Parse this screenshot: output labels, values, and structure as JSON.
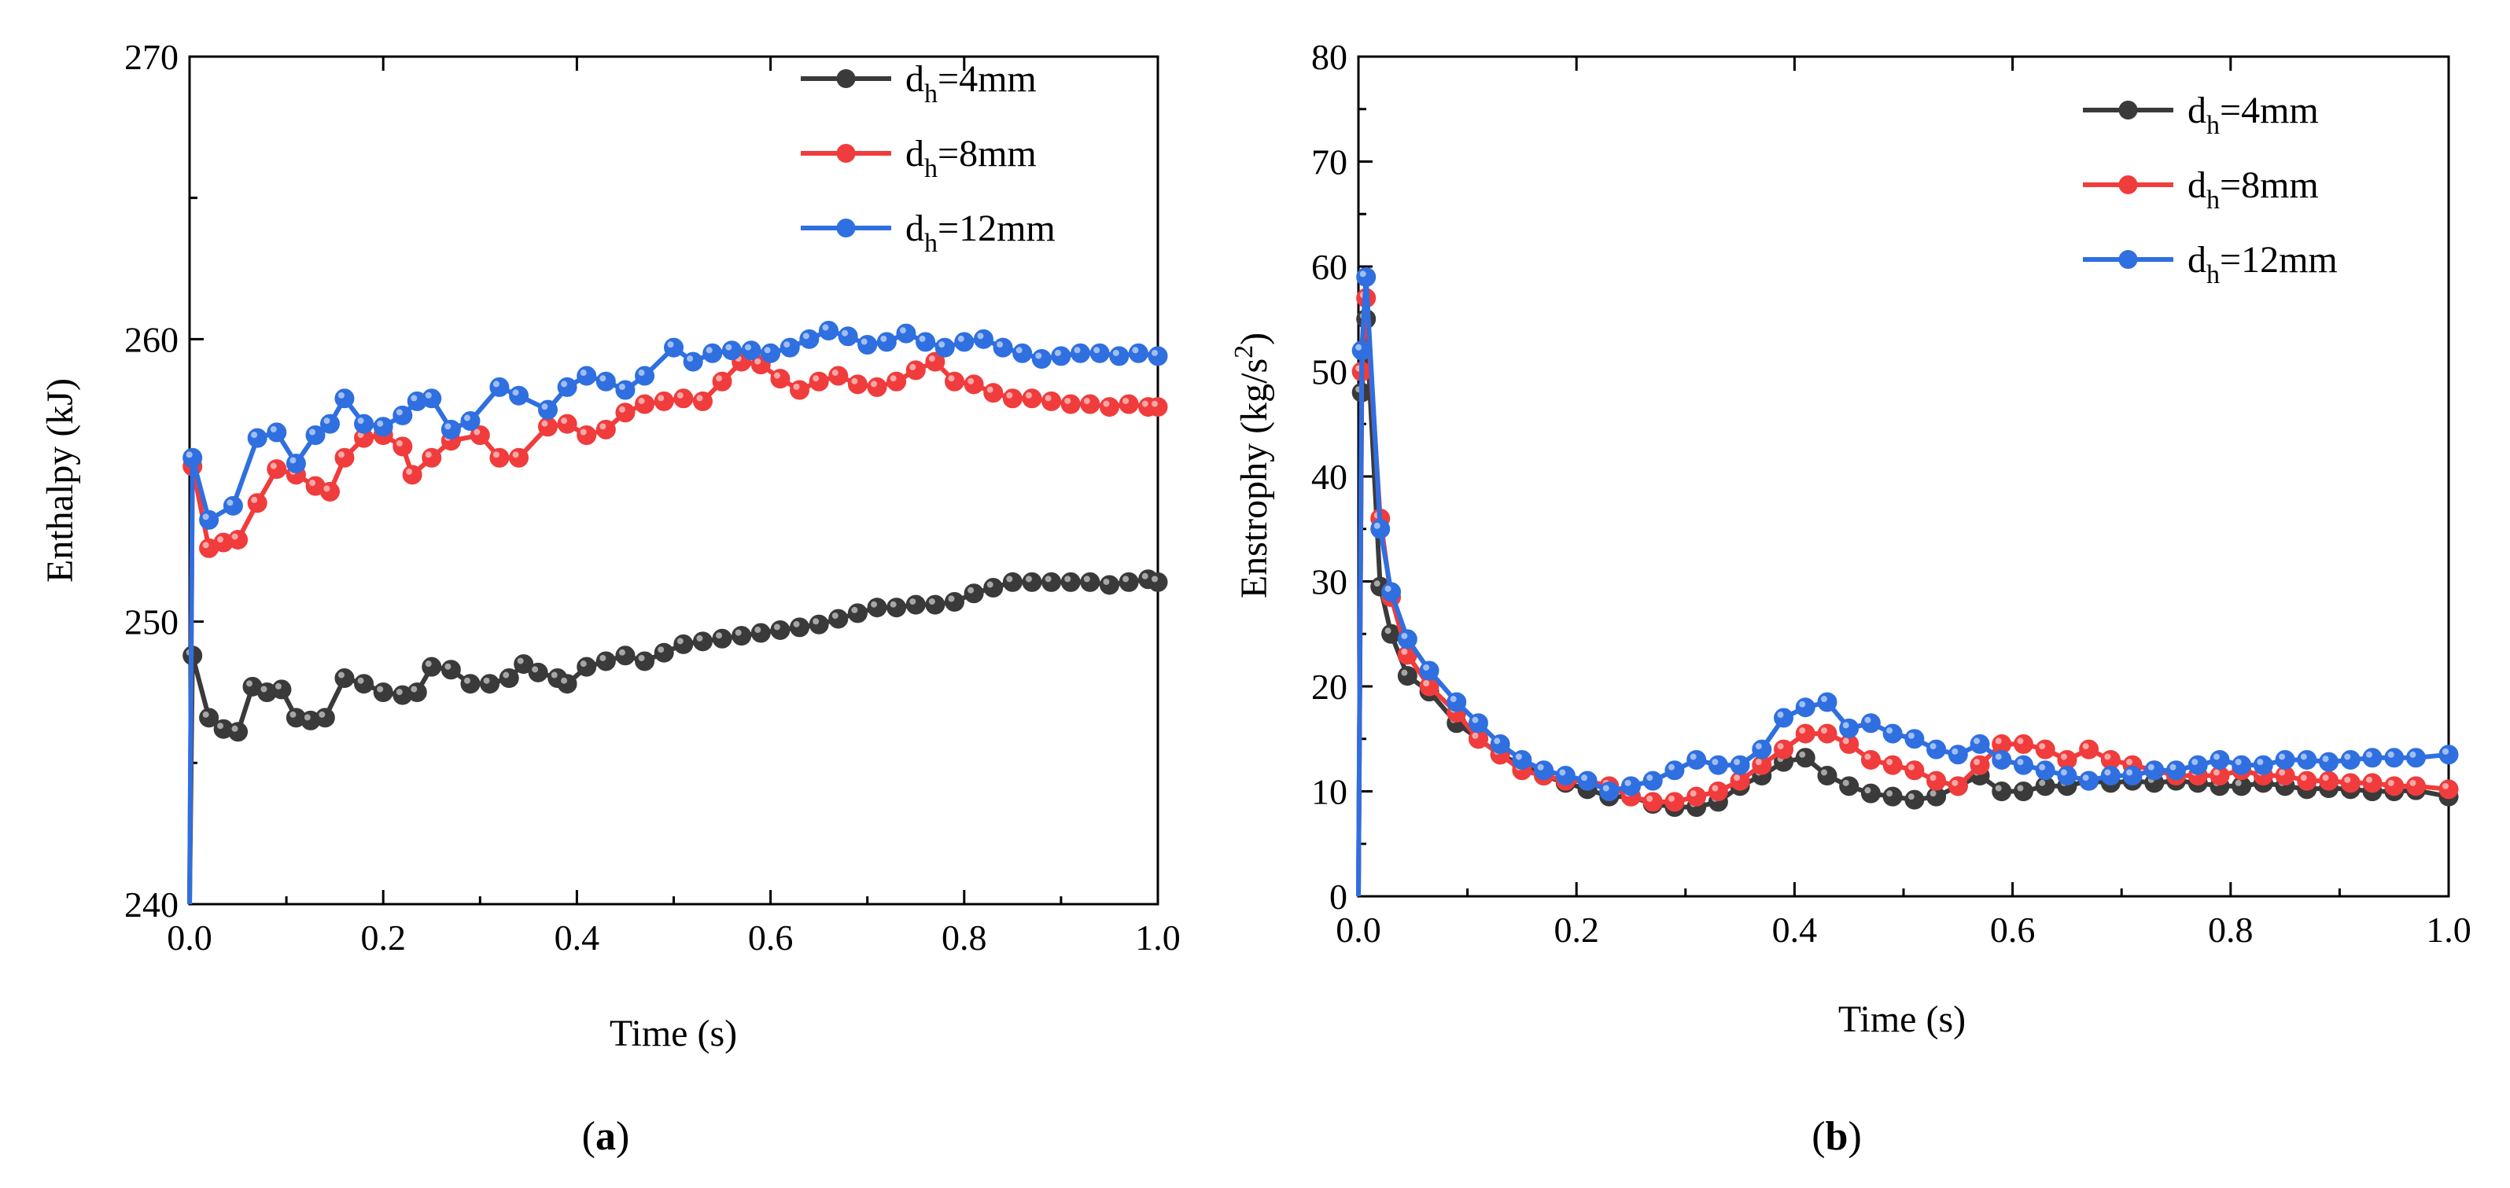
{
  "chart_data": [
    {
      "type": "line",
      "panel": "a",
      "xlabel": "Time (s)",
      "ylabel": "Enthalpy (kJ)",
      "xlim": [
        0,
        1.0
      ],
      "ylim": [
        240,
        270
      ],
      "xticks": [
        0.0,
        0.2,
        0.4,
        0.6,
        0.8,
        1.0
      ],
      "xtick_labels": [
        "0.0",
        "0.2",
        "0.4",
        "0.6",
        "0.8",
        "1.0"
      ],
      "yticks": [
        240,
        250,
        260,
        270
      ],
      "ytick_labels": [
        "240",
        "250",
        "260",
        "270"
      ],
      "legend_position": "top-right",
      "series": [
        {
          "name": "dh=4mm",
          "legend_main": "d",
          "legend_sub": "h",
          "legend_rest": "=4mm",
          "color": "#3a3a3a",
          "x": [
            0.0,
            0.003,
            0.02,
            0.035,
            0.05,
            0.065,
            0.08,
            0.095,
            0.11,
            0.125,
            0.14,
            0.16,
            0.18,
            0.2,
            0.22,
            0.235,
            0.25,
            0.27,
            0.29,
            0.31,
            0.33,
            0.345,
            0.36,
            0.38,
            0.39,
            0.41,
            0.43,
            0.45,
            0.47,
            0.49,
            0.51,
            0.53,
            0.55,
            0.57,
            0.59,
            0.61,
            0.63,
            0.65,
            0.67,
            0.69,
            0.71,
            0.73,
            0.75,
            0.77,
            0.79,
            0.81,
            0.83,
            0.85,
            0.87,
            0.89,
            0.91,
            0.93,
            0.95,
            0.97,
            0.99,
            1.0
          ],
          "y": [
            240.0,
            248.8,
            246.6,
            246.2,
            246.1,
            247.7,
            247.5,
            247.6,
            246.6,
            246.5,
            246.6,
            248.0,
            247.8,
            247.5,
            247.4,
            247.5,
            248.4,
            248.3,
            247.8,
            247.8,
            248.0,
            248.5,
            248.2,
            248.0,
            247.8,
            248.4,
            248.6,
            248.8,
            248.6,
            248.9,
            249.2,
            249.3,
            249.4,
            249.5,
            249.6,
            249.7,
            249.8,
            249.9,
            250.1,
            250.3,
            250.5,
            250.5,
            250.6,
            250.6,
            250.7,
            251.0,
            251.2,
            251.4,
            251.4,
            251.4,
            251.4,
            251.4,
            251.3,
            251.4,
            251.5,
            251.4
          ]
        },
        {
          "name": "dh=8mm",
          "legend_main": "d",
          "legend_sub": "h",
          "legend_rest": "=8mm",
          "color": "#f03c3c",
          "x": [
            0.0,
            0.003,
            0.02,
            0.035,
            0.05,
            0.07,
            0.09,
            0.11,
            0.13,
            0.145,
            0.16,
            0.18,
            0.2,
            0.22,
            0.23,
            0.25,
            0.27,
            0.3,
            0.32,
            0.34,
            0.37,
            0.39,
            0.41,
            0.43,
            0.45,
            0.47,
            0.49,
            0.51,
            0.53,
            0.55,
            0.57,
            0.59,
            0.61,
            0.63,
            0.65,
            0.67,
            0.69,
            0.71,
            0.73,
            0.75,
            0.77,
            0.79,
            0.81,
            0.83,
            0.85,
            0.87,
            0.89,
            0.91,
            0.93,
            0.95,
            0.97,
            0.99,
            1.0
          ],
          "y": [
            240.0,
            255.5,
            252.6,
            252.8,
            252.9,
            254.2,
            255.4,
            255.2,
            254.8,
            254.6,
            255.8,
            256.5,
            256.6,
            256.2,
            255.2,
            255.8,
            256.4,
            256.6,
            255.8,
            255.8,
            256.9,
            257.0,
            256.6,
            256.8,
            257.4,
            257.7,
            257.8,
            257.9,
            257.8,
            258.5,
            259.2,
            259.1,
            258.6,
            258.2,
            258.5,
            258.7,
            258.4,
            258.3,
            258.5,
            258.9,
            259.2,
            258.5,
            258.4,
            258.1,
            257.9,
            257.9,
            257.8,
            257.7,
            257.7,
            257.6,
            257.7,
            257.6,
            257.6
          ]
        },
        {
          "name": "dh=12mm",
          "legend_main": "d",
          "legend_sub": "h",
          "legend_rest": "=12mm",
          "color": "#2f6fe0",
          "x": [
            0.0,
            0.003,
            0.02,
            0.045,
            0.07,
            0.09,
            0.11,
            0.13,
            0.145,
            0.16,
            0.18,
            0.2,
            0.22,
            0.235,
            0.25,
            0.27,
            0.29,
            0.32,
            0.34,
            0.37,
            0.39,
            0.41,
            0.43,
            0.45,
            0.47,
            0.5,
            0.52,
            0.54,
            0.56,
            0.58,
            0.6,
            0.62,
            0.64,
            0.66,
            0.68,
            0.7,
            0.72,
            0.74,
            0.76,
            0.78,
            0.8,
            0.82,
            0.84,
            0.86,
            0.88,
            0.9,
            0.92,
            0.94,
            0.96,
            0.98,
            1.0
          ],
          "y": [
            240.0,
            255.8,
            253.6,
            254.1,
            256.5,
            256.7,
            255.6,
            256.6,
            257.0,
            257.9,
            257.0,
            256.9,
            257.3,
            257.8,
            257.9,
            256.8,
            257.1,
            258.3,
            258.0,
            257.5,
            258.3,
            258.7,
            258.5,
            258.2,
            258.7,
            259.7,
            259.2,
            259.5,
            259.6,
            259.6,
            259.5,
            259.7,
            260.0,
            260.3,
            260.1,
            259.8,
            259.9,
            260.2,
            259.9,
            259.7,
            259.9,
            260.0,
            259.7,
            259.5,
            259.3,
            259.4,
            259.5,
            259.5,
            259.4,
            259.5,
            259.4
          ]
        }
      ],
      "caption": "(a)"
    },
    {
      "type": "line",
      "panel": "b",
      "xlabel": "Time (s)",
      "ylabel_main": "Enstrophy (kg/s",
      "ylabel_sup": "2",
      "ylabel_end": ")",
      "xlim": [
        0,
        1.0
      ],
      "ylim": [
        0,
        80
      ],
      "xticks": [
        0.0,
        0.2,
        0.4,
        0.6,
        0.8,
        1.0
      ],
      "xtick_labels": [
        "0.0",
        "0.2",
        "0.4",
        "0.6",
        "0.8",
        "1.0"
      ],
      "yticks": [
        0,
        10,
        20,
        30,
        40,
        50,
        60,
        70,
        80
      ],
      "ytick_labels": [
        "0",
        "10",
        "20",
        "30",
        "40",
        "50",
        "60",
        "70",
        "80"
      ],
      "legend_position": "top-right",
      "series": [
        {
          "name": "dh=4mm",
          "legend_main": "d",
          "legend_sub": "h",
          "legend_rest": "=4mm",
          "color": "#3a3a3a",
          "x": [
            0.0,
            0.003,
            0.007,
            0.02,
            0.03,
            0.045,
            0.065,
            0.09,
            0.11,
            0.13,
            0.15,
            0.17,
            0.19,
            0.21,
            0.23,
            0.25,
            0.27,
            0.29,
            0.31,
            0.33,
            0.35,
            0.37,
            0.39,
            0.41,
            0.43,
            0.45,
            0.47,
            0.49,
            0.51,
            0.53,
            0.55,
            0.57,
            0.59,
            0.61,
            0.63,
            0.65,
            0.67,
            0.69,
            0.71,
            0.73,
            0.75,
            0.77,
            0.79,
            0.81,
            0.83,
            0.85,
            0.87,
            0.89,
            0.91,
            0.93,
            0.95,
            0.97,
            1.0
          ],
          "y": [
            0.0,
            48.0,
            55.0,
            29.5,
            25.0,
            21.0,
            19.5,
            16.5,
            15.0,
            13.5,
            12.5,
            11.5,
            10.8,
            10.2,
            9.5,
            9.5,
            8.8,
            8.5,
            8.5,
            9.0,
            10.5,
            11.5,
            12.8,
            13.2,
            11.5,
            10.5,
            9.8,
            9.5,
            9.2,
            9.5,
            10.5,
            11.5,
            10.0,
            10.0,
            10.5,
            10.5,
            11.0,
            10.8,
            11.0,
            10.8,
            11.0,
            10.8,
            10.5,
            10.5,
            10.8,
            10.5,
            10.2,
            10.3,
            10.2,
            10.0,
            10.0,
            10.1,
            9.5
          ]
        },
        {
          "name": "dh=8mm",
          "legend_main": "d",
          "legend_sub": "h",
          "legend_rest": "=8mm",
          "color": "#f03c3c",
          "x": [
            0.0,
            0.003,
            0.007,
            0.02,
            0.03,
            0.045,
            0.065,
            0.09,
            0.11,
            0.13,
            0.15,
            0.17,
            0.19,
            0.21,
            0.23,
            0.25,
            0.27,
            0.29,
            0.31,
            0.33,
            0.35,
            0.37,
            0.39,
            0.41,
            0.43,
            0.45,
            0.47,
            0.49,
            0.51,
            0.53,
            0.55,
            0.57,
            0.59,
            0.61,
            0.63,
            0.65,
            0.67,
            0.69,
            0.71,
            0.73,
            0.75,
            0.77,
            0.79,
            0.81,
            0.83,
            0.85,
            0.87,
            0.89,
            0.91,
            0.93,
            0.95,
            0.97,
            1.0
          ],
          "y": [
            0.0,
            50.0,
            57.0,
            36.0,
            28.5,
            23.0,
            20.0,
            17.5,
            15.0,
            13.5,
            12.0,
            11.5,
            11.0,
            11.0,
            10.5,
            9.5,
            9.0,
            9.0,
            9.5,
            10.0,
            11.0,
            12.5,
            14.0,
            15.5,
            15.5,
            14.5,
            13.0,
            12.5,
            12.0,
            11.0,
            10.5,
            12.5,
            14.5,
            14.5,
            14.0,
            13.0,
            14.0,
            13.0,
            12.5,
            12.0,
            11.5,
            11.5,
            11.5,
            12.0,
            11.5,
            11.5,
            11.0,
            11.0,
            10.8,
            10.8,
            10.5,
            10.5,
            10.2
          ]
        },
        {
          "name": "dh=12mm",
          "legend_main": "d",
          "legend_sub": "h",
          "legend_rest": "=12mm",
          "color": "#2f6fe0",
          "x": [
            0.0,
            0.003,
            0.007,
            0.02,
            0.03,
            0.045,
            0.065,
            0.09,
            0.11,
            0.13,
            0.15,
            0.17,
            0.19,
            0.21,
            0.23,
            0.25,
            0.27,
            0.29,
            0.31,
            0.33,
            0.35,
            0.37,
            0.39,
            0.41,
            0.43,
            0.45,
            0.47,
            0.49,
            0.51,
            0.53,
            0.55,
            0.57,
            0.59,
            0.61,
            0.63,
            0.65,
            0.67,
            0.69,
            0.71,
            0.73,
            0.75,
            0.77,
            0.79,
            0.81,
            0.83,
            0.85,
            0.87,
            0.89,
            0.91,
            0.93,
            0.95,
            0.97,
            1.0
          ],
          "y": [
            0.0,
            52.0,
            59.0,
            35.0,
            29.0,
            24.5,
            21.5,
            18.5,
            16.5,
            14.5,
            13.0,
            12.0,
            11.5,
            11.0,
            10.0,
            10.5,
            11.0,
            12.0,
            13.0,
            12.5,
            12.5,
            14.0,
            17.0,
            18.0,
            18.5,
            16.0,
            16.5,
            15.5,
            15.0,
            14.0,
            13.5,
            14.5,
            13.0,
            12.5,
            12.0,
            11.5,
            11.0,
            11.5,
            11.5,
            12.0,
            12.0,
            12.5,
            13.0,
            12.5,
            12.5,
            13.0,
            13.0,
            12.8,
            13.0,
            13.2,
            13.2,
            13.2,
            13.5
          ]
        }
      ],
      "caption": "(b)"
    }
  ]
}
